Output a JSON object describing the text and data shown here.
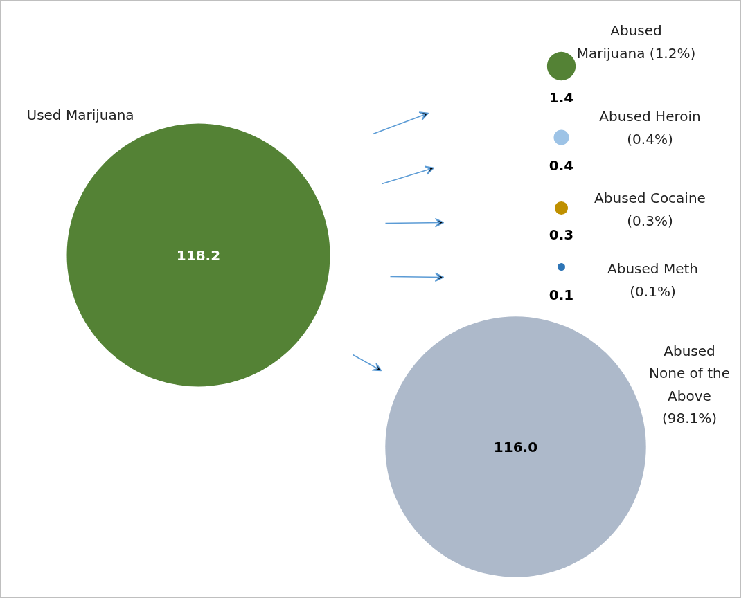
{
  "chart_data": {
    "type": "other",
    "categories": [
      "Used Marijuana",
      "Abused\nMarijuana (1.2%)",
      "Abused Heroin\n(0.4%)",
      "Abused Cocaine\n(0.3%)",
      "Abused Meth\n(0.1%)",
      "Abused\nNone of the\nAbove\n(98.1%)"
    ],
    "values": [
      118.2,
      1.4,
      0.4,
      0.3,
      0.1,
      116.0
    ],
    "value_labels": [
      "118.2",
      "1.4",
      "0.4",
      "0.3",
      "0.1",
      "116.0"
    ],
    "colors": [
      "#548235",
      "#548235",
      "#9dc3e6",
      "#bf9000",
      "#2e75b6",
      "#adb9ca"
    ]
  }
}
